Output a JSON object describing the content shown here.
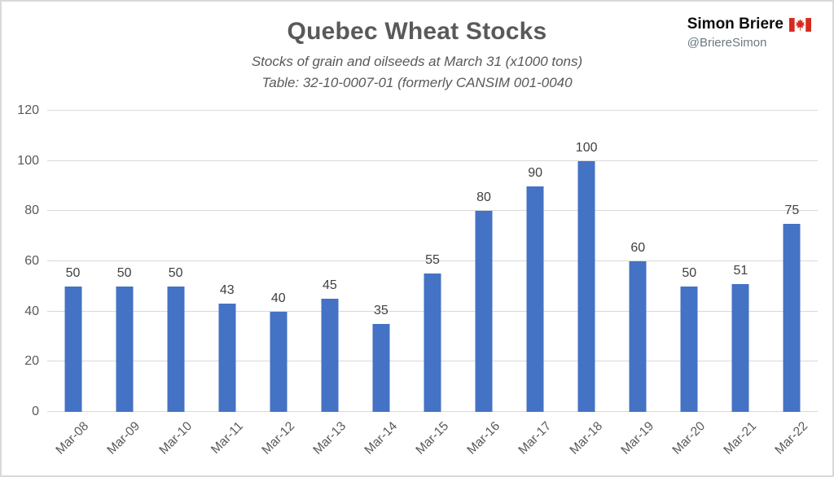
{
  "header": {
    "title": "Quebec Wheat Stocks",
    "subtitle_line1": "Stocks of grain and oilseeds at March 31 (x1000 tons)",
    "subtitle_line2": "Table: 32-10-0007-01 (formerly CANSIM 001-0040",
    "brand": {
      "name": "Simon Briere",
      "handle": "@BriereSimon",
      "flag_icon": "canada-flag-icon"
    }
  },
  "chart_data": {
    "type": "bar",
    "title": "Quebec Wheat Stocks",
    "subtitle": "Stocks of grain and oilseeds at March 31 (x1000 tons)",
    "source_note": "Table: 32-10-0007-01 (formerly CANSIM 001-0040",
    "categories": [
      "Mar-08",
      "Mar-09",
      "Mar-10",
      "Mar-11",
      "Mar-12",
      "Mar-13",
      "Mar-14",
      "Mar-15",
      "Mar-16",
      "Mar-17",
      "Mar-18",
      "Mar-19",
      "Mar-20",
      "Mar-21",
      "Mar-22"
    ],
    "values": [
      50,
      50,
      50,
      43,
      40,
      45,
      35,
      55,
      80,
      90,
      100,
      60,
      50,
      51,
      75
    ],
    "xlabel": "",
    "ylabel": "",
    "ylim": [
      0,
      120
    ],
    "y_ticks": [
      0,
      20,
      40,
      60,
      80,
      100,
      120
    ],
    "grid": true,
    "data_labels": true,
    "legend": "none"
  },
  "colors": {
    "bar": "#4472C4",
    "gridline": "#D9D9D9",
    "axis_text": "#595959",
    "data_label_text": "#404040",
    "title_text": "#595959",
    "brand_name_text": "#0D0D0D",
    "handle_text": "#697882",
    "flag_red": "#D52B1E",
    "frame_border": "#D9D9D9"
  }
}
